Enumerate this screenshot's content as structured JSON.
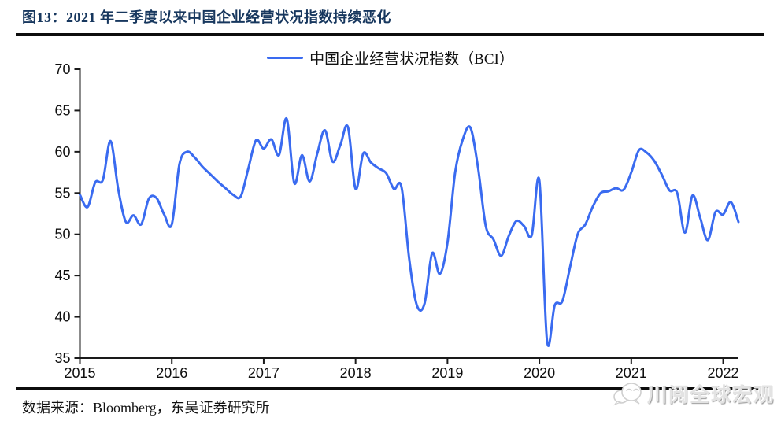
{
  "figure": {
    "title": "图13：2021 年二季度以来中国企业经营状况指数持续恶化",
    "source": "数据来源：Bloomberg，东吴证券研究所",
    "watermark": "川阅全球宏观"
  },
  "legend": {
    "label": "中国企业经营状况指数（BCI）"
  },
  "colors": {
    "line": "#3A6BF0",
    "title_navy": "#17375E",
    "axis": "#1a1a1a",
    "watermark_gray": "#e3e3e3"
  },
  "chart_data": {
    "type": "line",
    "title": "中国企业经营状况指数（BCI）",
    "frequency": "monthly",
    "x_start": "2015-01",
    "x_end": "2022-03",
    "x_tick_labels": [
      "2015",
      "2016",
      "2017",
      "2018",
      "2019",
      "2020",
      "2021",
      "2022"
    ],
    "months_per_tick": 12,
    "y_ticks": [
      70,
      65,
      60,
      55,
      50,
      45,
      40,
      35
    ],
    "ylim": [
      35,
      70
    ],
    "grid": false,
    "legend_position": "top-center",
    "series": [
      {
        "name": "中国企业经营状况指数（BCI）",
        "color": "#3A6BF0",
        "values": [
          54.8,
          53.3,
          56.3,
          56.6,
          61.3,
          55.5,
          51.5,
          52.3,
          51.2,
          54.3,
          54.4,
          52.4,
          51.2,
          58.5,
          60.0,
          59.3,
          58.2,
          57.3,
          56.4,
          55.6,
          54.8,
          54.6,
          58.0,
          61.4,
          60.4,
          61.5,
          59.6,
          64.0,
          56.2,
          59.6,
          56.4,
          59.8,
          62.6,
          58.8,
          60.8,
          63.0,
          55.5,
          59.8,
          58.7,
          58.0,
          57.4,
          55.5,
          55.7,
          47.0,
          41.4,
          41.6,
          47.7,
          45.2,
          49.0,
          57.5,
          61.5,
          62.9,
          58.0,
          51.0,
          49.4,
          47.4,
          49.8,
          51.6,
          51.0,
          49.9,
          56.5,
          37.1,
          41.4,
          41.9,
          46.0,
          50.0,
          51.2,
          53.4,
          55.0,
          55.2,
          55.6,
          55.4,
          57.5,
          60.2,
          59.9,
          58.9,
          57.2,
          55.3,
          55.0,
          50.2,
          54.7,
          52.0,
          49.3,
          52.7,
          52.4,
          53.9,
          51.5
        ]
      }
    ]
  }
}
